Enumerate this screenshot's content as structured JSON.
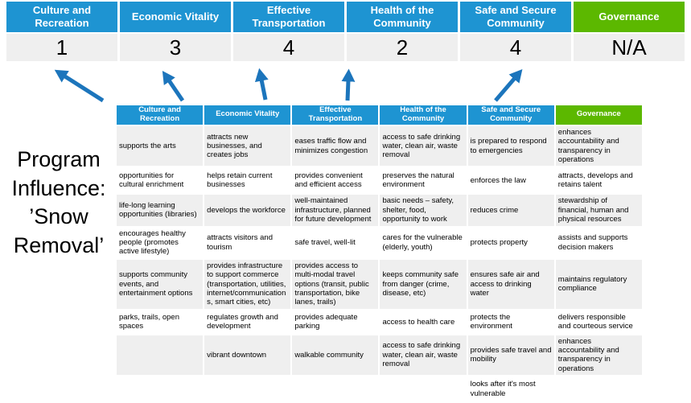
{
  "slide": {
    "program_title": {
      "full_text": "Program Influence: ’Snow Removal’",
      "lines": [
        "Program",
        "Influence:",
        "’Snow",
        "Removal’"
      ]
    },
    "colors": {
      "header_blue": "#1E94D2",
      "header_green": "#5CB800",
      "highlight_yellow": "#FFFF99",
      "band_gray": "#EFEFEF",
      "arrow_blue": "#1C75BC"
    },
    "summary": {
      "columns": [
        {
          "label": "Culture and Recreation",
          "score": "1",
          "color": "blue"
        },
        {
          "label": "Economic Vitality",
          "score": "3",
          "color": "blue"
        },
        {
          "label": "Effective Transportation",
          "score": "4",
          "color": "blue"
        },
        {
          "label": "Health of the Community",
          "score": "2",
          "color": "blue"
        },
        {
          "label": "Safe and Secure Community",
          "score": "4",
          "color": "blue"
        },
        {
          "label": "Governance",
          "score": "N/A",
          "color": "green"
        }
      ]
    },
    "influence_arrows": [
      "up-left",
      "up-left",
      "up",
      "up",
      "up-right"
    ],
    "matrix": {
      "headers": [
        {
          "label": "Culture and Recreation",
          "color": "blue"
        },
        {
          "label": "Economic Vitality",
          "color": "blue"
        },
        {
          "label": "Effective Transportation",
          "color": "blue"
        },
        {
          "label": "Health of the Community",
          "color": "blue"
        },
        {
          "label": "Safe and Secure Community",
          "color": "blue"
        },
        {
          "label": "Governance",
          "color": "green"
        }
      ],
      "rows": [
        [
          {
            "text": "supports the arts",
            "highlight": false
          },
          {
            "text": "attracts new businesses, and creates jobs",
            "highlight": false
          },
          {
            "text": "eases traffic flow and minimizes congestion",
            "highlight": true
          },
          {
            "text": "access to safe drinking water, clean air, waste removal",
            "highlight": false
          },
          {
            "text": "is prepared to respond to emergencies",
            "highlight": true
          },
          {
            "text": "enhances accountability and transparency in operations",
            "highlight": false
          }
        ],
        [
          {
            "text": "opportunities for cultural enrichment",
            "highlight": false
          },
          {
            "text": "helps retain current businesses",
            "highlight": true
          },
          {
            "text": "provides convenient and efficient access",
            "highlight": true
          },
          {
            "text": "preserves the natural environment",
            "highlight": false
          },
          {
            "text": "enforces the law",
            "highlight": false
          },
          {
            "text": "attracts, develops and retains talent",
            "highlight": false
          }
        ],
        [
          {
            "text": "life-long learning opportunities (libraries)",
            "highlight": false
          },
          {
            "text": "develops the workforce",
            "highlight": false
          },
          {
            "text": "well-maintained infrastructure, planned for future development",
            "highlight": false
          },
          {
            "text": "basic needs – safety, shelter, food, opportunity to work",
            "highlight": true
          },
          {
            "text": "reduces crime",
            "highlight": false
          },
          {
            "text": "stewardship of financial, human and physical resources",
            "highlight": false
          }
        ],
        [
          {
            "text": "encourages healthy people (promotes active lifestyle)",
            "highlight": false
          },
          {
            "text": "attracts visitors and tourism",
            "highlight": false
          },
          {
            "text": "safe travel, well-lit",
            "highlight": true
          },
          {
            "text": "cares for the vulnerable (elderly, youth)",
            "highlight": true
          },
          {
            "text": "protects property",
            "highlight": true
          },
          {
            "text": "assists and supports decision makers",
            "highlight": false
          }
        ],
        [
          {
            "text": "supports community events, and entertainment options",
            "highlight": false
          },
          {
            "text": "provides infrastructure to support commerce (transportation, utilities, internet/communications, smart cities, etc)",
            "highlight": true
          },
          {
            "text": "provides access to multi-modal travel options (transit, public transportation, bike lanes, trails)",
            "highlight": true
          },
          {
            "text": "keeps community safe from danger (crime, disease, etc)",
            "highlight": true
          },
          {
            "text": "ensures safe air and access to drinking water",
            "highlight": false
          },
          {
            "text": "maintains regulatory compliance",
            "highlight": false
          }
        ],
        [
          {
            "text": "parks, trails, open spaces",
            "highlight": true
          },
          {
            "text": "regulates growth and development",
            "highlight": false
          },
          {
            "text": "provides adequate parking",
            "highlight": false
          },
          {
            "text": "access to health care",
            "highlight": false
          },
          {
            "text": "protects the environment",
            "highlight": false
          },
          {
            "text": "delivers responsible and courteous service",
            "highlight": false
          }
        ],
        [
          {
            "text": "",
            "highlight": false
          },
          {
            "text": "vibrant downtown",
            "highlight": false
          },
          {
            "text": "walkable community",
            "highlight": false
          },
          {
            "text": "access to safe drinking water, clean air, waste removal",
            "highlight": false
          },
          {
            "text": "provides safe travel and mobility",
            "highlight": true
          },
          {
            "text": "enhances accountability and transparency in operations",
            "highlight": false
          }
        ],
        [
          {
            "text": "",
            "highlight": false
          },
          {
            "text": "",
            "highlight": false
          },
          {
            "text": "",
            "highlight": false
          },
          {
            "text": "",
            "highlight": false
          },
          {
            "text": "looks after it's most vulnerable",
            "highlight": true
          },
          {
            "text": "",
            "highlight": false
          }
        ]
      ]
    }
  }
}
